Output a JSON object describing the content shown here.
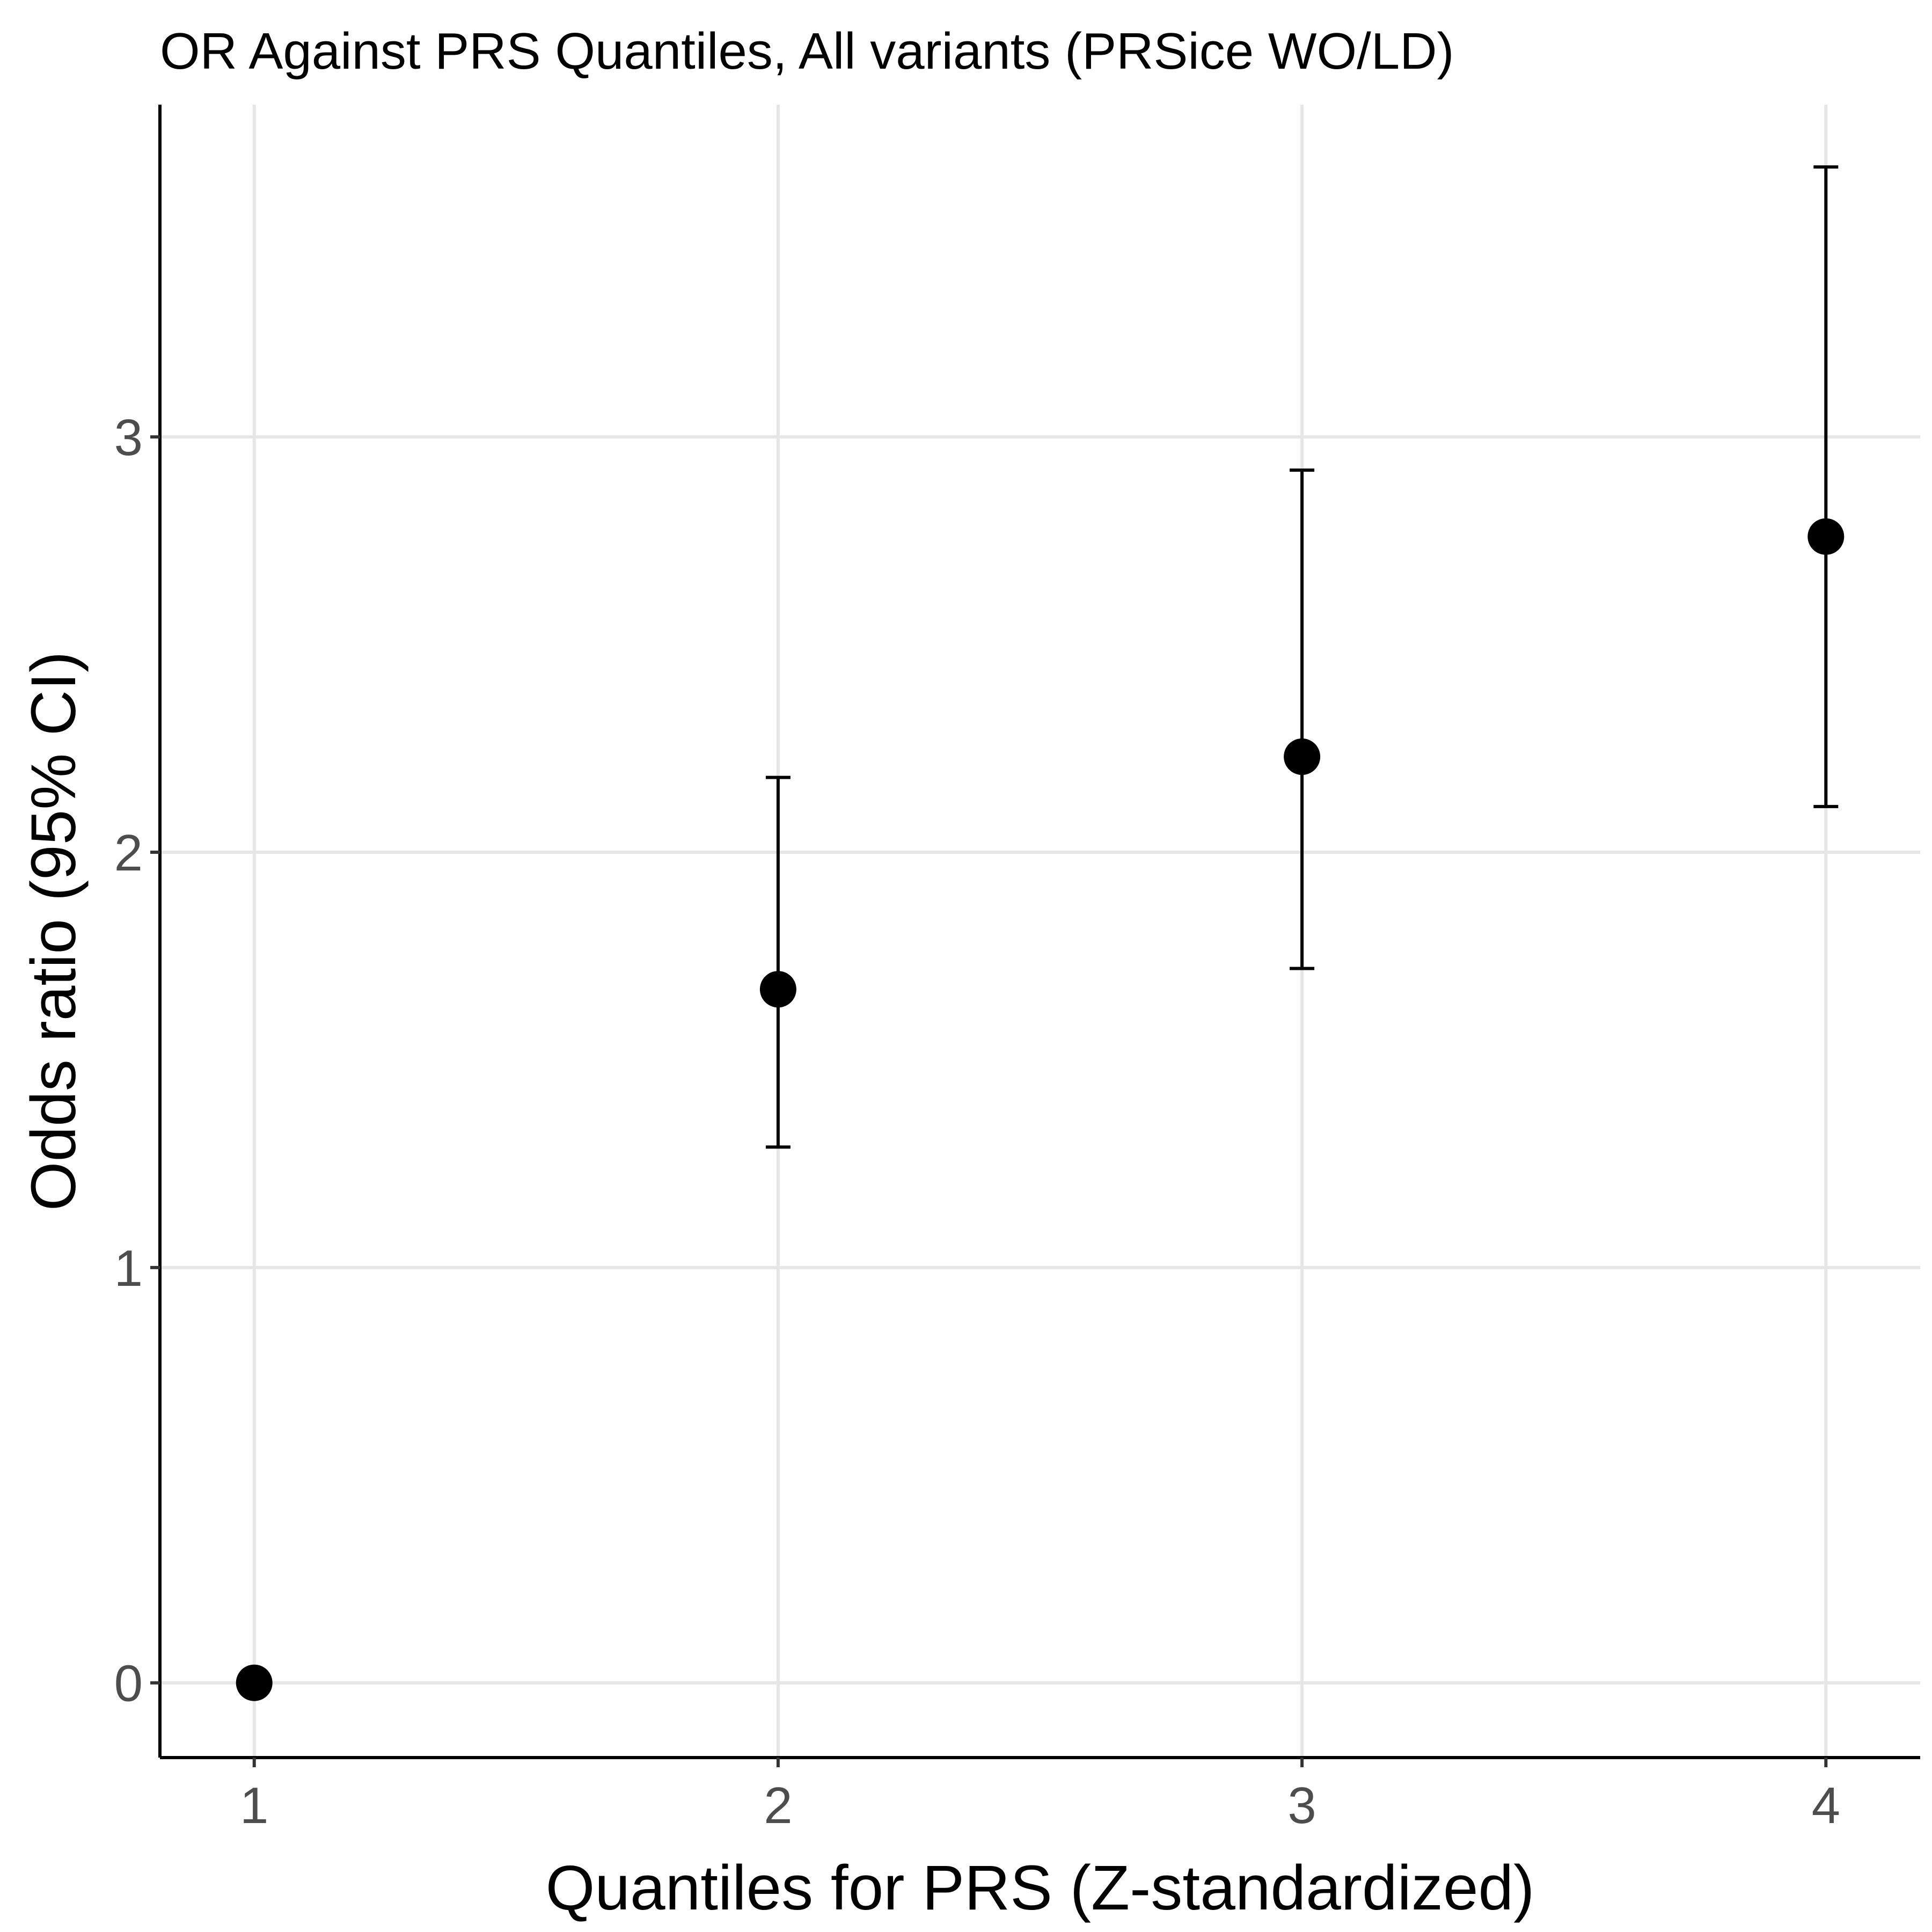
{
  "chart_data": {
    "type": "scatter",
    "title": "OR Against PRS Quantiles, All variants (PRSice WO/LD)",
    "xlabel": "Quantiles for PRS (Z-standardized)",
    "ylabel": "Odds ratio (95% CI)",
    "x_ticks": [
      "1",
      "2",
      "3",
      "4"
    ],
    "y_ticks": [
      "0",
      "1",
      "2",
      "3"
    ],
    "xlim": [
      0.82,
      4.18
    ],
    "ylim": [
      -0.18,
      3.8
    ],
    "grid": true,
    "points": [
      {
        "x": 1,
        "y": 0.0,
        "lower": null,
        "upper": null
      },
      {
        "x": 2,
        "y": 1.67,
        "lower": 1.29,
        "upper": 2.18
      },
      {
        "x": 3,
        "y": 2.23,
        "lower": 1.72,
        "upper": 2.92
      },
      {
        "x": 4,
        "y": 2.76,
        "lower": 2.11,
        "upper": 3.65
      }
    ],
    "colors": {
      "point": "#000000",
      "grid": "#e6e6e6",
      "axis": "#000000",
      "tick_label": "#4d4d4d"
    }
  }
}
